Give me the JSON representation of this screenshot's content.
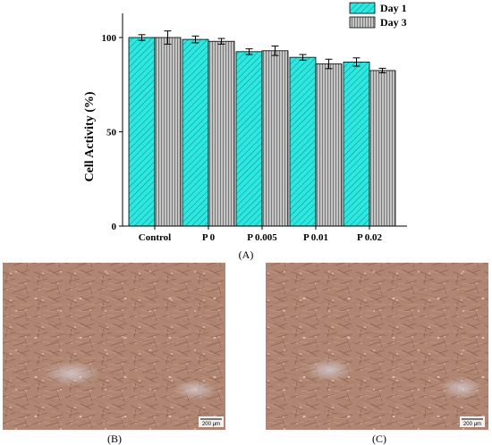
{
  "chart_data": {
    "type": "bar",
    "categories": [
      "Control",
      "P 0",
      "P 0.005",
      "P 0.01",
      "P 0.02"
    ],
    "series": [
      {
        "name": "Day 1",
        "values": [
          100,
          99,
          92.5,
          89.5,
          87
        ],
        "errors": [
          1.5,
          1.8,
          1.5,
          1.5,
          2.2
        ],
        "color": "#2ce8e0"
      },
      {
        "name": "Day 3",
        "values": [
          100,
          98,
          93,
          86,
          82.5
        ],
        "errors": [
          3.5,
          1.5,
          2.5,
          2.5,
          1.2
        ],
        "color": "#c4c4c4"
      }
    ],
    "title": "",
    "xlabel": "",
    "ylabel": "Cell Activity (%)",
    "ylim": [
      0,
      100
    ],
    "yticks": [
      0,
      50,
      100
    ],
    "grid": false,
    "legend_position": "top-right"
  },
  "panels": {
    "A": {
      "label": "(A)"
    },
    "B": {
      "label": "(B)",
      "scale_text": "200 μm"
    },
    "C": {
      "label": "(C)",
      "scale_text": "200 μm"
    }
  }
}
